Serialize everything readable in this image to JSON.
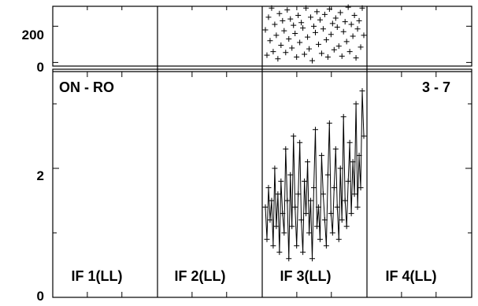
{
  "chart_data": {
    "type": "scatter",
    "title": "",
    "baseline": "ON - RO",
    "scan_range": "3 - 7",
    "panels": [
      {
        "label": "IF 1(LL)",
        "has_data": false
      },
      {
        "label": "IF 2(LL)",
        "has_data": false
      },
      {
        "label": "IF 3(LL)",
        "has_data": true
      },
      {
        "label": "IF 4(LL)",
        "has_data": false
      }
    ],
    "phase_axis": {
      "ylim": [
        -20,
        310
      ],
      "ticks": [
        0,
        200
      ]
    },
    "amp_axis": {
      "ylim": [
        0,
        3.5
      ],
      "ticks": [
        0,
        2
      ]
    },
    "channels": 64,
    "phase": [
      180,
      40,
      250,
      120,
      300,
      60,
      210,
      150,
      20,
      270,
      95,
      230,
      175,
      55,
      290,
      130,
      240,
      80,
      205,
      160,
      30,
      260,
      110,
      220,
      190,
      45,
      300,
      140,
      75,
      250,
      10,
      200,
      165,
      280,
      100,
      235,
      50,
      185,
      265,
      125,
      30,
      295,
      155,
      215,
      70,
      245,
      195,
      90,
      275,
      35,
      170,
      225,
      115,
      305,
      60,
      210,
      145,
      260,
      25,
      185,
      230,
      85,
      300,
      150
    ],
    "amplitude": [
      1.4,
      0.9,
      1.7,
      1.2,
      1.5,
      0.8,
      2.0,
      1.1,
      1.6,
      0.7,
      1.8,
      1.3,
      1.0,
      2.3,
      1.5,
      0.6,
      1.9,
      1.1,
      2.5,
      1.4,
      0.8,
      1.6,
      2.4,
      1.2,
      0.7,
      1.8,
      1.3,
      2.1,
      1.0,
      1.5,
      0.6,
      1.7,
      2.6,
      1.1,
      1.4,
      0.9,
      2.2,
      1.6,
      1.2,
      0.8,
      1.9,
      2.7,
      1.3,
      1.0,
      1.7,
      2.3,
      1.4,
      0.9,
      2.0,
      1.2,
      2.8,
      1.5,
      1.1,
      1.8,
      2.4,
      1.3,
      2.1,
      1.6,
      3.0,
      1.4,
      2.2,
      1.7,
      3.2,
      2.5
    ],
    "colors": {
      "marks": "#000000",
      "frame": "#000000",
      "background": "#ffffff"
    }
  }
}
